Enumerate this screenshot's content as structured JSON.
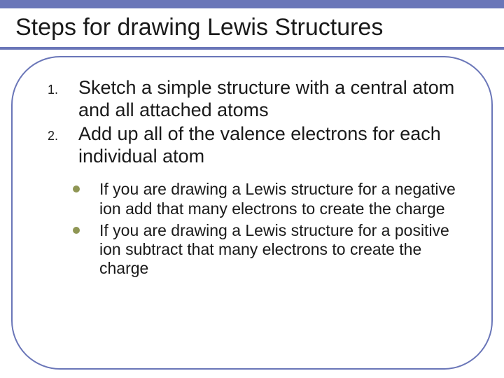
{
  "slide": {
    "title": "Steps for drawing Lewis Structures",
    "top_bar_color": "#6a76b8",
    "underline_color": "#6a76b8",
    "frame_border_color": "#6a76b8",
    "title_fontsize": 34,
    "num_fontsize": 27,
    "sub_fontsize": 23,
    "bullet_color": "#8f9654",
    "background_color": "#ffffff",
    "text_color": "#1a1a1a",
    "numbered_items": [
      {
        "marker": "1.",
        "text": "Sketch a simple structure with a central atom and all attached atoms"
      },
      {
        "marker": "2.",
        "text": "Add up all of the valence electrons for each individual atom"
      }
    ],
    "sub_items": [
      {
        "text": "If you are drawing a Lewis structure for a negative ion add that many electrons to create the charge"
      },
      {
        "text": "If you are drawing a Lewis structure for a positive ion subtract that many electrons to create the charge"
      }
    ]
  }
}
